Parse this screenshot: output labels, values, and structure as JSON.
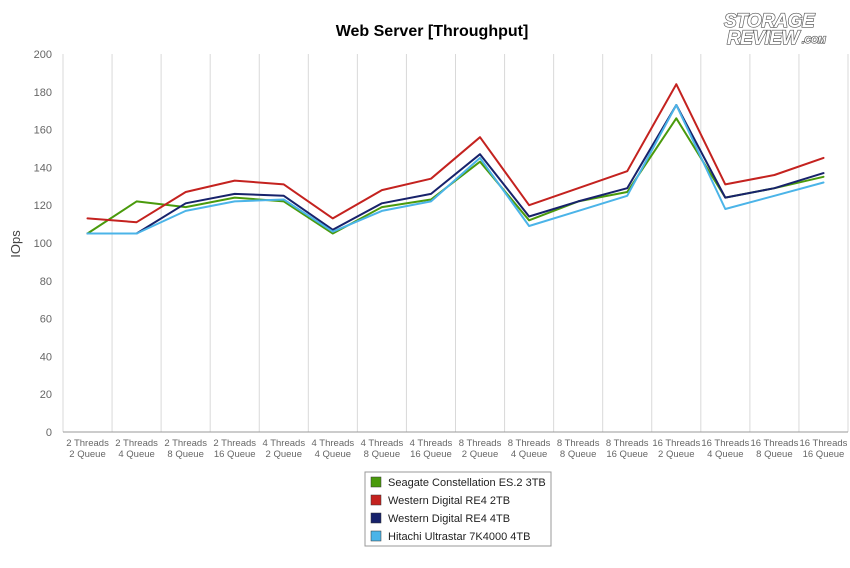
{
  "chart_data": {
    "type": "line",
    "title": "Web Server [Throughput]",
    "ylabel": "IOps",
    "xlabel": "",
    "ylim": [
      0,
      200
    ],
    "yticks": [
      0,
      20,
      40,
      60,
      80,
      100,
      120,
      140,
      160,
      180,
      200
    ],
    "grid": "vertical",
    "legend_position": "bottom",
    "categories": [
      [
        "2 Threads",
        "2 Queue"
      ],
      [
        "2 Threads",
        "4 Queue"
      ],
      [
        "2 Threads",
        "8 Queue"
      ],
      [
        "2 Threads",
        "16 Queue"
      ],
      [
        "4 Threads",
        "2 Queue"
      ],
      [
        "4 Threads",
        "4 Queue"
      ],
      [
        "4 Threads",
        "8 Queue"
      ],
      [
        "4 Threads",
        "16 Queue"
      ],
      [
        "8 Threads",
        "2 Queue"
      ],
      [
        "8 Threads",
        "4 Queue"
      ],
      [
        "8 Threads",
        "8 Queue"
      ],
      [
        "8 Threads",
        "16 Queue"
      ],
      [
        "16 Threads",
        "2 Queue"
      ],
      [
        "16 Threads",
        "4 Queue"
      ],
      [
        "16 Threads",
        "8 Queue"
      ],
      [
        "16 Threads",
        "16 Queue"
      ]
    ],
    "series": [
      {
        "name": "Seagate Constellation ES.2 3TB",
        "color": "#4a9a0c",
        "values": [
          105,
          122,
          119,
          124,
          122,
          105,
          119,
          123,
          143,
          112,
          122,
          127,
          166,
          124,
          129,
          135
        ]
      },
      {
        "name": "Western Digital RE4 2TB",
        "color": "#c4221f",
        "values": [
          113,
          111,
          127,
          133,
          131,
          113,
          128,
          134,
          156,
          120,
          129,
          138,
          184,
          131,
          136,
          145
        ]
      },
      {
        "name": "Western Digital RE4 4TB",
        "color": "#17226b",
        "values": [
          105,
          105,
          121,
          126,
          125,
          107,
          121,
          126,
          147,
          114,
          122,
          129,
          173,
          124,
          129,
          137
        ]
      },
      {
        "name": "Hitachi Ultrastar 7K4000 4TB",
        "color": "#4bb4e8",
        "values": [
          105,
          105,
          117,
          122,
          123,
          106,
          117,
          122,
          145,
          109,
          117,
          125,
          173,
          118,
          125,
          132
        ]
      }
    ]
  },
  "logo": {
    "line1": "STORAGE",
    "line2": "REVIEW",
    "suffix": ".COM"
  }
}
